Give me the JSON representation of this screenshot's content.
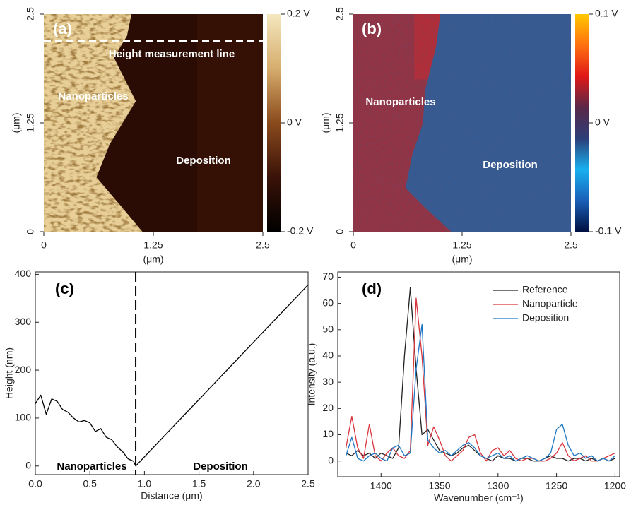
{
  "chart_data": [
    {
      "type": "heatmap",
      "annotations": [
        "(a)",
        "Height measurement line",
        "Nanoparticles",
        "Deposition"
      ],
      "xlabel": "(μm)",
      "ylabel": "(μm)",
      "xlim": [
        0,
        2.5
      ],
      "xticks": [
        0,
        1.25,
        2.5
      ],
      "ylim": [
        0,
        2.5
      ],
      "yticks": [
        0,
        1.25,
        2.5
      ],
      "zlim": [
        -0.2,
        0.2
      ],
      "zticks": [
        {
          "value": 0.2,
          "label": "0.2 V"
        },
        {
          "value": 0,
          "label": "0 V"
        },
        {
          "value": -0.2,
          "label": "-0.2 V"
        }
      ],
      "colormap": [
        "#000000",
        "#3a1208",
        "#8a4a1c",
        "#d6ad6c",
        "#f5e8c0"
      ]
    },
    {
      "type": "heatmap",
      "annotations": [
        "(b)",
        "Nanoparticles",
        "Deposition"
      ],
      "xlabel": "(μm)",
      "ylabel": "(μm)",
      "xlim": [
        0,
        2.5
      ],
      "xticks": [
        0,
        1.25,
        2.5
      ],
      "ylim": [
        0,
        2.5
      ],
      "yticks": [
        0,
        1.25,
        2.5
      ],
      "zlim": [
        -0.1,
        0.1
      ],
      "zticks": [
        {
          "value": 0.1,
          "label": "0.1 V"
        },
        {
          "value": 0,
          "label": "0 V"
        },
        {
          "value": -0.1,
          "label": "-0.1 V"
        }
      ],
      "colormap": [
        "#001040",
        "#1a5fb8",
        "#18b0f0",
        "#2c3e78",
        "#5a2848",
        "#e01818",
        "#ff7010",
        "#ffc800"
      ]
    },
    {
      "type": "line",
      "annotations": [
        "(c)",
        "Nanoparticles",
        "Deposition"
      ],
      "xlabel": "Distance (μm)",
      "ylabel": "Height (nm)",
      "color": "#000000",
      "x": [
        0,
        0.05,
        0.1,
        0.15,
        0.2,
        0.25,
        0.3,
        0.35,
        0.4,
        0.45,
        0.5,
        0.55,
        0.6,
        0.65,
        0.7,
        0.75,
        0.8,
        0.85,
        0.9,
        0.92,
        2.5
      ],
      "values": [
        130,
        148,
        108,
        140,
        135,
        118,
        112,
        100,
        92,
        95,
        90,
        72,
        78,
        60,
        55,
        40,
        30,
        15,
        10,
        0,
        378
      ],
      "vline": 0.92,
      "xlim": [
        0,
        2.5
      ],
      "xticks": [
        {
          "value": 0,
          "label": "0.0"
        },
        {
          "value": 0.5,
          "label": "0.5"
        },
        {
          "value": 1,
          "label": "1.0"
        },
        {
          "value": 1.5,
          "label": "1.5"
        },
        {
          "value": 2,
          "label": "2.0"
        },
        {
          "value": 2.5,
          "label": "2.5"
        }
      ],
      "ylim": [
        -18,
        405
      ],
      "yticks": [
        0,
        100,
        200,
        300,
        400
      ]
    },
    {
      "type": "multiline",
      "annotations": [
        "(d)"
      ],
      "legend": "upper right",
      "xlabel": "Wavenumber (cm⁻¹)",
      "ylabel": "Intensity (a.u.)",
      "x": [
        1430,
        1425,
        1420,
        1415,
        1410,
        1405,
        1400,
        1395,
        1390,
        1385,
        1380,
        1375,
        1370,
        1365,
        1360,
        1355,
        1350,
        1345,
        1340,
        1335,
        1330,
        1325,
        1320,
        1315,
        1310,
        1305,
        1300,
        1295,
        1290,
        1285,
        1280,
        1275,
        1270,
        1265,
        1260,
        1255,
        1250,
        1245,
        1240,
        1235,
        1230,
        1225,
        1220,
        1215,
        1210,
        1205,
        1200
      ],
      "series": [
        {
          "name": "Reference",
          "color": "#222222",
          "values": [
            3,
            2,
            4,
            2,
            3,
            1,
            3,
            2,
            1,
            5,
            40,
            66,
            35,
            10,
            12,
            8,
            4,
            3,
            2,
            3,
            5,
            6,
            4,
            2,
            1,
            0,
            2,
            1,
            1,
            0,
            1,
            1,
            0,
            0,
            1,
            2,
            1,
            1,
            0,
            1,
            1,
            0,
            1,
            0,
            1,
            0,
            1
          ]
        },
        {
          "name": "Nanoparticle",
          "color": "#d9363e",
          "values": [
            5,
            17,
            5,
            1,
            14,
            2,
            0,
            3,
            5,
            2,
            1,
            4,
            62,
            40,
            6,
            13,
            8,
            2,
            0,
            2,
            4,
            9,
            10,
            3,
            0,
            4,
            5,
            2,
            4,
            1,
            0,
            1,
            1,
            0,
            0,
            1,
            3,
            7,
            2,
            0,
            1,
            2,
            0,
            0,
            1,
            2,
            3
          ]
        },
        {
          "name": "Deposition",
          "color": "#1f77c4",
          "values": [
            2,
            9,
            1,
            0,
            2,
            3,
            1,
            0,
            5,
            6,
            2,
            3,
            35,
            52,
            8,
            5,
            3,
            4,
            2,
            4,
            6,
            7,
            5,
            2,
            1,
            2,
            3,
            1,
            2,
            0,
            1,
            2,
            1,
            0,
            1,
            3,
            12,
            14,
            6,
            2,
            3,
            1,
            2,
            0,
            1,
            0,
            2
          ]
        }
      ],
      "xlim": [
        1437,
        1196
      ],
      "xticks": [
        1400,
        1350,
        1300,
        1250,
        1200
      ],
      "ylim": [
        -6,
        72
      ],
      "yticks": [
        0,
        10,
        20,
        30,
        40,
        50,
        60,
        70
      ]
    }
  ]
}
